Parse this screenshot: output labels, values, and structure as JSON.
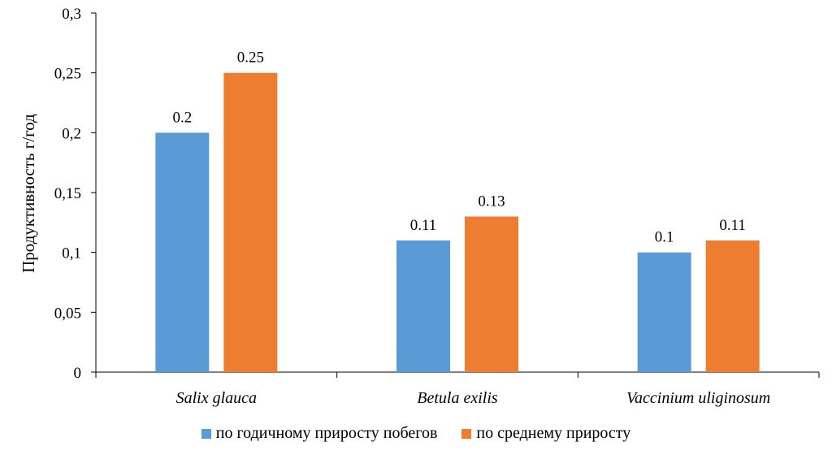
{
  "chart_data": {
    "type": "bar",
    "title": "",
    "xlabel": "",
    "ylabel": "Продуктивность г/год",
    "ylim": [
      0,
      0.3
    ],
    "yticks": [
      "0",
      "0,05",
      "0,1",
      "0,15",
      "0,2",
      "0,25",
      "0,3"
    ],
    "ytick_values": [
      0,
      0.05,
      0.1,
      0.15,
      0.2,
      0.25,
      0.3
    ],
    "categories": [
      "Salix glauca",
      "Betula exilis",
      "Vaccinium uliginosum"
    ],
    "series": [
      {
        "name": "по годичному приросту побегов",
        "color": "#5B9BD5",
        "values": [
          0.2,
          0.11,
          0.1
        ],
        "labels": [
          "0.2",
          "0.11",
          "0.1"
        ]
      },
      {
        "name": "по среднему приросту",
        "color": "#ED7D31",
        "values": [
          0.25,
          0.13,
          0.11
        ],
        "labels": [
          "0.25",
          "0.13",
          "0.11"
        ]
      }
    ],
    "grid": false,
    "legend_position": "bottom"
  }
}
